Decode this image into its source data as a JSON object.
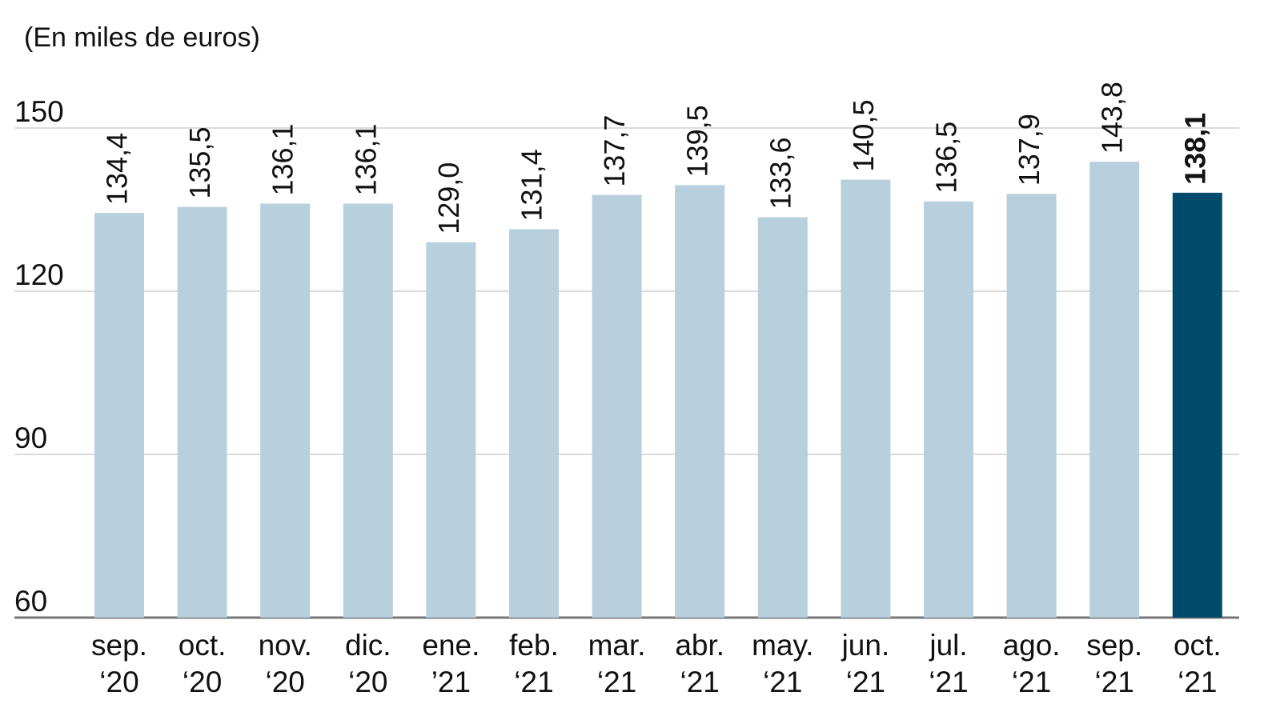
{
  "chart_data": {
    "type": "bar",
    "subtitle": "(En miles de euros)",
    "categories": [
      "sep.\n‘20",
      "oct.\n‘20",
      "nov.\n‘20",
      "dic.\n‘20",
      "ene.\n’21",
      "feb.\n‘21",
      "mar.\n‘21",
      "abr.\n‘21",
      "may.\n‘21",
      "jun.\n‘21",
      "jul.\n‘21",
      "ago.\n‘21",
      "sep.\n‘21",
      "oct.\n‘21"
    ],
    "values": [
      134.4,
      135.5,
      136.1,
      136.1,
      129.0,
      131.4,
      137.7,
      139.5,
      133.6,
      140.5,
      136.5,
      137.9,
      143.8,
      138.1
    ],
    "value_labels": [
      "134,4",
      "135,5",
      "136,1",
      "136,1",
      "129,0",
      "131,4",
      "137,7",
      "139,5",
      "133,6",
      "140,5",
      "136,5",
      "137,9",
      "143,8",
      "138,1"
    ],
    "colors": [
      "#b8d0dd",
      "#b8d0dd",
      "#b8d0dd",
      "#b8d0dd",
      "#b8d0dd",
      "#b8d0dd",
      "#b8d0dd",
      "#b8d0dd",
      "#b8d0dd",
      "#b8d0dd",
      "#b8d0dd",
      "#b8d0dd",
      "#b8d0dd",
      "#004b6b"
    ],
    "ylim": [
      60,
      160
    ],
    "yticks": [
      60,
      90,
      120,
      150
    ],
    "grid": true
  }
}
